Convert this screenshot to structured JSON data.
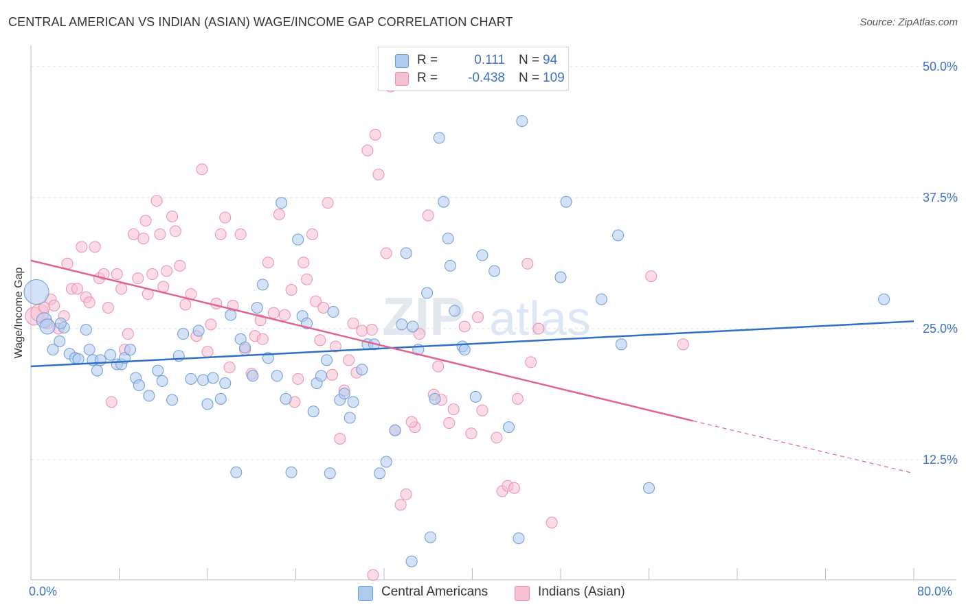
{
  "header": {
    "title": "CENTRAL AMERICAN VS INDIAN (ASIAN) WAGE/INCOME GAP CORRELATION CHART",
    "source": "Source: ZipAtlas.com"
  },
  "legend_top": {
    "rows": [
      {
        "r_label": "R =",
        "r_value": "0.111",
        "n_label": "N =",
        "n_value": "94"
      },
      {
        "r_label": "R =",
        "r_value": "-0.438",
        "n_label": "N =",
        "n_value": "109"
      }
    ]
  },
  "legend_bottom": {
    "items": [
      "Central Americans",
      "Indians (Asian)"
    ]
  },
  "colors": {
    "blue_fill": "#aecbf0",
    "blue_stroke": "#6a9ad8",
    "blue_line": "#2f6fc4",
    "pink_fill": "#f7bfd2",
    "pink_stroke": "#ea8fae",
    "pink_line": "#e0638f",
    "tick_text": "#3b72c4",
    "grid": "#dddddd"
  },
  "chart_data": {
    "type": "scatter",
    "title": "CENTRAL AMERICAN VS INDIAN (ASIAN) WAGE/INCOME GAP CORRELATION CHART",
    "xlabel": "",
    "ylabel": "Wage/Income Gap",
    "x_tick_labels": [
      "0.0%",
      "80.0%"
    ],
    "y_tick_labels": [
      "12.5%",
      "25.0%",
      "37.5%",
      "50.0%"
    ],
    "y_ticks": [
      12.5,
      25.0,
      37.5,
      50.0
    ],
    "xlim": [
      0,
      80
    ],
    "ylim": [
      0,
      50
    ],
    "grid": true,
    "watermark": "ZIPatlas",
    "series": [
      {
        "name": "Central Americans",
        "color": "#aecbf0",
        "R": 0.111,
        "N": 94,
        "trend": {
          "x0": 0,
          "y0": 21.4,
          "x1": 80,
          "y1": 25.7,
          "dashed_from": null
        },
        "points": [
          [
            0.5,
            28.5
          ],
          [
            1.2,
            25.8
          ],
          [
            1.5,
            25.2
          ],
          [
            2.0,
            23.0
          ],
          [
            2.6,
            23.8
          ],
          [
            3.0,
            25.1
          ],
          [
            3.5,
            22.6
          ],
          [
            4.0,
            22.2
          ],
          [
            5.3,
            23.0
          ],
          [
            4.3,
            22.1
          ],
          [
            5.6,
            22.0
          ],
          [
            6.0,
            21.0
          ],
          [
            6.3,
            22.0
          ],
          [
            7.2,
            22.5
          ],
          [
            7.8,
            21.6
          ],
          [
            8.2,
            21.6
          ],
          [
            8.5,
            22.2
          ],
          [
            9.0,
            23.0
          ],
          [
            9.5,
            20.3
          ],
          [
            9.8,
            19.6
          ],
          [
            10.7,
            18.6
          ],
          [
            11.5,
            21.0
          ],
          [
            11.9,
            20.0
          ],
          [
            12.8,
            18.2
          ],
          [
            13.4,
            22.4
          ],
          [
            13.8,
            24.5
          ],
          [
            14.5,
            20.2
          ],
          [
            15.2,
            24.8
          ],
          [
            15.6,
            20.1
          ],
          [
            16.0,
            17.8
          ],
          [
            16.5,
            20.3
          ],
          [
            17.2,
            18.3
          ],
          [
            17.6,
            19.8
          ],
          [
            18.1,
            26.3
          ],
          [
            18.6,
            11.3
          ],
          [
            19.0,
            24.0
          ],
          [
            19.4,
            23.2
          ],
          [
            20.1,
            20.5
          ],
          [
            20.5,
            27.0
          ],
          [
            21.0,
            29.2
          ],
          [
            21.5,
            22.2
          ],
          [
            22.3,
            20.5
          ],
          [
            22.7,
            37.0
          ],
          [
            23.1,
            18.3
          ],
          [
            23.6,
            11.3
          ],
          [
            24.2,
            33.5
          ],
          [
            24.6,
            26.2
          ],
          [
            25.0,
            25.5
          ],
          [
            25.6,
            17.1
          ],
          [
            25.9,
            19.8
          ],
          [
            26.3,
            20.5
          ],
          [
            26.8,
            22.0
          ],
          [
            27.1,
            11.2
          ],
          [
            27.4,
            26.6
          ],
          [
            28.0,
            18.2
          ],
          [
            28.4,
            18.8
          ],
          [
            28.9,
            16.5
          ],
          [
            29.2,
            18.0
          ],
          [
            30.0,
            21.1
          ],
          [
            30.5,
            23.5
          ],
          [
            31.1,
            23.5
          ],
          [
            31.6,
            11.2
          ],
          [
            32.2,
            12.3
          ],
          [
            33.0,
            15.3
          ],
          [
            33.6,
            25.4
          ],
          [
            34.0,
            32.2
          ],
          [
            34.6,
            25.2
          ],
          [
            35.1,
            23.0
          ],
          [
            35.9,
            28.4
          ],
          [
            36.2,
            5.1
          ],
          [
            36.6,
            18.3
          ],
          [
            37.0,
            43.2
          ],
          [
            37.4,
            37.1
          ],
          [
            37.8,
            33.6
          ],
          [
            38.0,
            31.0
          ],
          [
            38.4,
            26.7
          ],
          [
            39.1,
            23.3
          ],
          [
            39.3,
            23.0
          ],
          [
            40.3,
            18.5
          ],
          [
            40.9,
            32.0
          ],
          [
            42.0,
            30.5
          ],
          [
            43.3,
            15.6
          ],
          [
            44.2,
            5.0
          ],
          [
            44.5,
            44.8
          ],
          [
            48.0,
            29.9
          ],
          [
            48.5,
            37.1
          ],
          [
            51.7,
            27.8
          ],
          [
            53.2,
            33.9
          ],
          [
            53.5,
            23.5
          ],
          [
            56.0,
            9.8
          ],
          [
            34.5,
            2.8
          ],
          [
            77.3,
            27.8
          ],
          [
            2.7,
            25.5
          ],
          [
            5.0,
            24.9
          ]
        ],
        "sizes_note": "one large marker at the left edge near 28.5%"
      },
      {
        "name": "Indians (Asian)",
        "color": "#f7bfd2",
        "R": -0.438,
        "N": 109,
        "trend": {
          "x0": 0,
          "y0": 31.5,
          "x1": 60,
          "y1": 16.2,
          "dashed_to_x": 80,
          "dashed_to_y": 11.2
        },
        "points": [
          [
            0.3,
            26.2
          ],
          [
            0.8,
            26.5
          ],
          [
            1.2,
            27.0
          ],
          [
            1.5,
            25.5
          ],
          [
            1.8,
            27.8
          ],
          [
            2.1,
            27.2
          ],
          [
            2.5,
            25.0
          ],
          [
            3.0,
            26.2
          ],
          [
            3.3,
            31.2
          ],
          [
            3.7,
            28.8
          ],
          [
            4.2,
            28.8
          ],
          [
            4.6,
            32.8
          ],
          [
            5.0,
            28.0
          ],
          [
            5.3,
            27.5
          ],
          [
            5.8,
            32.8
          ],
          [
            6.2,
            29.8
          ],
          [
            6.6,
            30.2
          ],
          [
            7.0,
            27.0
          ],
          [
            7.3,
            18.0
          ],
          [
            7.8,
            30.2
          ],
          [
            8.2,
            28.8
          ],
          [
            8.5,
            23.0
          ],
          [
            8.8,
            24.5
          ],
          [
            9.3,
            34.0
          ],
          [
            9.7,
            29.8
          ],
          [
            10.2,
            33.6
          ],
          [
            10.4,
            35.3
          ],
          [
            10.6,
            28.3
          ],
          [
            11.0,
            30.2
          ],
          [
            11.4,
            37.2
          ],
          [
            11.7,
            34.0
          ],
          [
            12.0,
            29.0
          ],
          [
            12.3,
            30.5
          ],
          [
            12.8,
            35.7
          ],
          [
            13.1,
            34.3
          ],
          [
            13.5,
            31.0
          ],
          [
            14.0,
            27.3
          ],
          [
            14.5,
            28.3
          ],
          [
            15.0,
            24.3
          ],
          [
            15.5,
            40.2
          ],
          [
            16.0,
            22.8
          ],
          [
            16.3,
            25.4
          ],
          [
            16.8,
            27.4
          ],
          [
            17.2,
            34.0
          ],
          [
            17.6,
            35.6
          ],
          [
            18.0,
            21.3
          ],
          [
            18.3,
            27.2
          ],
          [
            19.0,
            34.0
          ],
          [
            19.4,
            23.0
          ],
          [
            20.0,
            20.7
          ],
          [
            20.3,
            24.3
          ],
          [
            20.8,
            25.8
          ],
          [
            21.0,
            24.0
          ],
          [
            21.5,
            31.3
          ],
          [
            22.0,
            26.5
          ],
          [
            22.5,
            35.9
          ],
          [
            23.0,
            26.3
          ],
          [
            23.6,
            28.7
          ],
          [
            23.9,
            18.0
          ],
          [
            24.2,
            20.2
          ],
          [
            24.7,
            31.3
          ],
          [
            25.0,
            29.7
          ],
          [
            25.5,
            34.0
          ],
          [
            25.8,
            27.6
          ],
          [
            26.2,
            23.9
          ],
          [
            26.5,
            27.0
          ],
          [
            26.9,
            37.0
          ],
          [
            27.3,
            20.6
          ],
          [
            27.6,
            23.3
          ],
          [
            28.0,
            14.5
          ],
          [
            28.4,
            19.1
          ],
          [
            28.8,
            22.0
          ],
          [
            29.2,
            25.5
          ],
          [
            29.5,
            20.8
          ],
          [
            30.0,
            24.8
          ],
          [
            30.5,
            42.0
          ],
          [
            30.9,
            24.9
          ],
          [
            31.2,
            43.5
          ],
          [
            31.5,
            39.7
          ],
          [
            32.2,
            32.2
          ],
          [
            32.6,
            48.1
          ],
          [
            33.0,
            15.3
          ],
          [
            33.5,
            8.2
          ],
          [
            34.0,
            9.2
          ],
          [
            34.8,
            15.6
          ],
          [
            35.2,
            24.5
          ],
          [
            36.0,
            35.8
          ],
          [
            36.5,
            18.7
          ],
          [
            36.9,
            21.4
          ],
          [
            37.2,
            18.2
          ],
          [
            37.9,
            16.0
          ],
          [
            38.3,
            17.3
          ],
          [
            39.3,
            25.2
          ],
          [
            39.9,
            15.0
          ],
          [
            40.5,
            26.1
          ],
          [
            40.9,
            17.2
          ],
          [
            42.2,
            14.6
          ],
          [
            42.7,
            9.5
          ],
          [
            43.2,
            10.0
          ],
          [
            43.8,
            9.8
          ],
          [
            44.1,
            18.3
          ],
          [
            45.0,
            31.2
          ],
          [
            45.3,
            21.8
          ],
          [
            46.0,
            25.0
          ],
          [
            47.2,
            6.5
          ],
          [
            56.2,
            30.0
          ],
          [
            59.1,
            23.5
          ],
          [
            31.0,
            1.5
          ],
          [
            34.5,
            16.1
          ]
        ]
      }
    ]
  }
}
